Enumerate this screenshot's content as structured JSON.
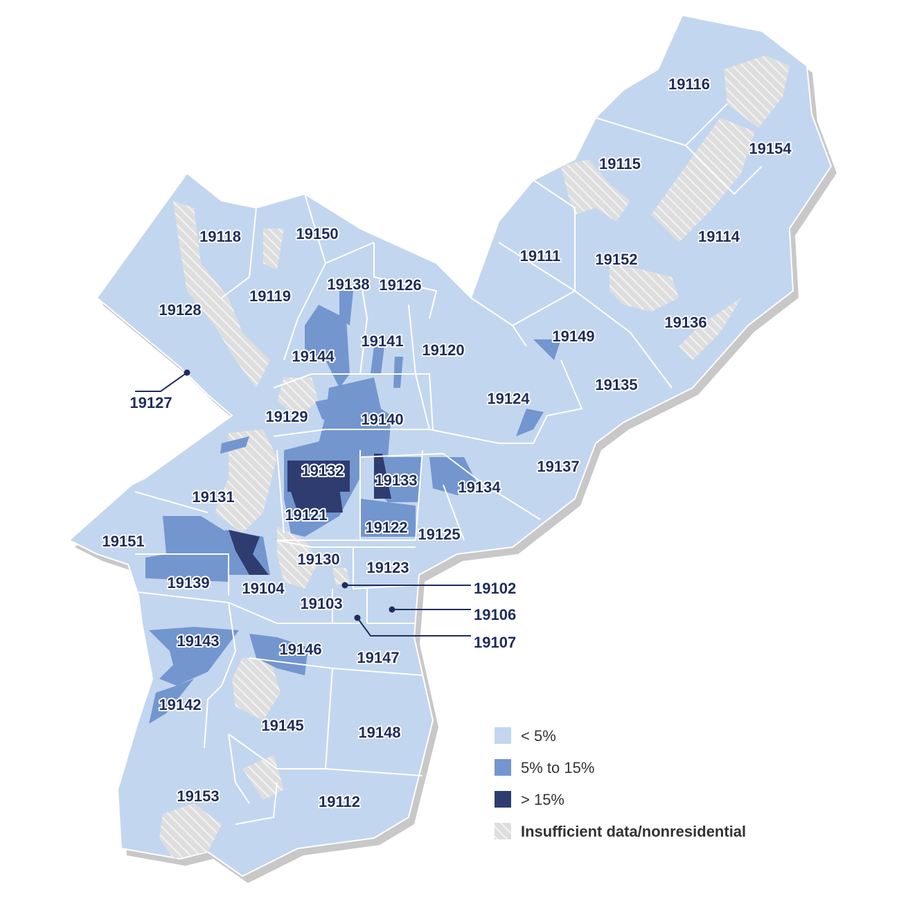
{
  "colors": {
    "low": "#c3d6ef",
    "mid": "#7396cf",
    "high": "#2e3c70",
    "nodata": "#dedede",
    "nodata_stripe": "#f3f3f3",
    "border": "#ffffff",
    "shadow": "#c8c8c8",
    "label": "#1f2d5c"
  },
  "legend": {
    "items": [
      {
        "key": "low",
        "label": "< 5%"
      },
      {
        "key": "mid",
        "label": "5% to 15%"
      },
      {
        "key": "high",
        "label": "> 15%"
      },
      {
        "key": "nodata",
        "label": "Insufficient data/nonresidential"
      }
    ]
  },
  "zip_labels": [
    "19116",
    "19154",
    "19115",
    "19114",
    "19152",
    "19111",
    "19136",
    "19149",
    "19135",
    "19124",
    "19137",
    "19150",
    "19118",
    "19119",
    "19138",
    "19126",
    "19128",
    "19141",
    "19120",
    "19144",
    "19127",
    "19129",
    "19140",
    "19134",
    "19132",
    "19133",
    "19131",
    "19121",
    "19122",
    "19125",
    "19151",
    "19130",
    "19123",
    "19139",
    "19104",
    "19102",
    "19103",
    "19106",
    "19107",
    "19143",
    "19146",
    "19147",
    "19142",
    "19145",
    "19148",
    "19153",
    "19112"
  ],
  "callouts": [
    "19127",
    "19102",
    "19106",
    "19107"
  ]
}
